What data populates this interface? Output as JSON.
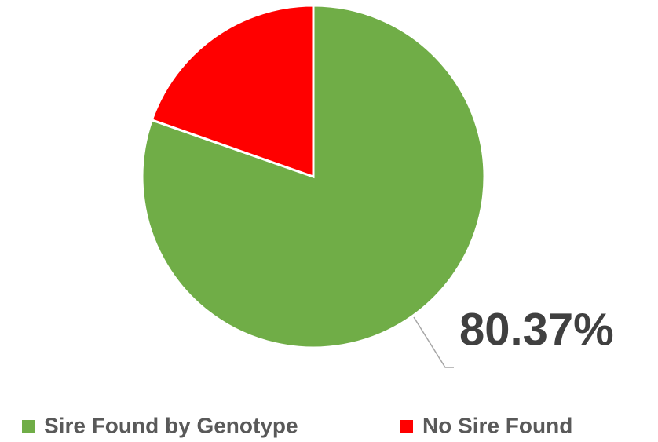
{
  "chart_data": {
    "type": "pie",
    "categories": [
      "Sire Found by Genotype",
      "No Sire Found"
    ],
    "values": [
      80.37,
      19.63
    ],
    "value_labels": [
      "80.37%",
      null
    ],
    "colors": [
      "#70ad47",
      "#ff0000"
    ]
  }
}
